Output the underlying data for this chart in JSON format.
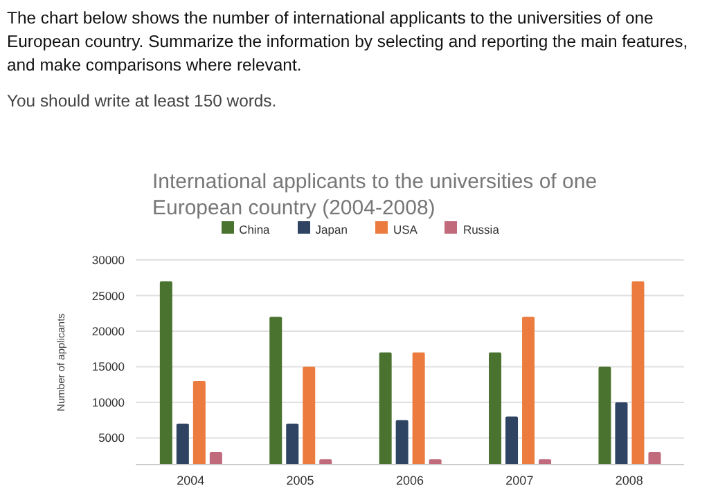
{
  "chart_data": {
    "type": "bar",
    "title": "International applicants to the universities of one European country (2004-2008)",
    "ylabel": "Number of applicants",
    "annotations": [
      "The chart below shows the number of international applicants to the universities of one European country. Summarize the information by selecting and reporting the main features, and make comparisons where relevant.",
      "You should write at least 150 words."
    ],
    "categories": [
      "2004",
      "2005",
      "2006",
      "2007",
      "2008"
    ],
    "series": [
      {
        "name": "China",
        "color": "#4a7330",
        "values": [
          27000,
          22000,
          17000,
          17000,
          15000
        ]
      },
      {
        "name": "Japan",
        "color": "#2e4462",
        "values": [
          7000,
          7000,
          7500,
          8000,
          10000
        ]
      },
      {
        "name": "USA",
        "color": "#ec7b40",
        "values": [
          13000,
          15000,
          17000,
          22000,
          27000
        ]
      },
      {
        "name": "Russia",
        "color": "#c06a7c",
        "values": [
          3000,
          2000,
          2000,
          2000,
          3000
        ]
      }
    ],
    "ylim": [
      1250,
      30000
    ],
    "yticks": [
      5000,
      10000,
      15000,
      20000,
      25000,
      30000
    ],
    "grid": "y",
    "legend": "top"
  }
}
